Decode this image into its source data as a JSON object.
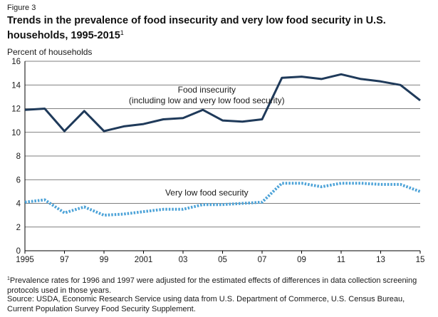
{
  "figure_label": "Figure 3",
  "title": "Trends in the prevalence of food insecurity and very low food security in U.S. households, 1995-2015",
  "title_sup": "1",
  "footnote_sup": "1",
  "footnote": "Prevalence rates for 1996 and 1997 were adjusted for the estimated effects of differences in data collection screening protocols used in those years.",
  "source": "Source: USDA, Economic Research Service using data from U.S. Department of Commerce, U.S. Census Bureau, Current Population Survey Food Security Supplement.",
  "colors": {
    "food_insecurity": "#1f3a5a",
    "very_low": "#4da3d8",
    "grid": "#555555",
    "axis": "#000000"
  },
  "chart_data": {
    "type": "line",
    "ylabel": "Percent of households",
    "ylim": [
      0,
      16
    ],
    "xlim": [
      1995,
      2015
    ],
    "yticks": [
      0,
      2,
      4,
      6,
      8,
      10,
      12,
      14,
      16
    ],
    "xticks": [
      {
        "value": 1995,
        "label": "1995"
      },
      {
        "value": 1997,
        "label": "97"
      },
      {
        "value": 1999,
        "label": "99"
      },
      {
        "value": 2001,
        "label": "2001"
      },
      {
        "value": 2003,
        "label": "03"
      },
      {
        "value": 2005,
        "label": "05"
      },
      {
        "value": 2007,
        "label": "07"
      },
      {
        "value": 2009,
        "label": "09"
      },
      {
        "value": 2011,
        "label": "11"
      },
      {
        "value": 2013,
        "label": "13"
      },
      {
        "value": 2015,
        "label": "15"
      }
    ],
    "grid": true,
    "series": [
      {
        "name": "Food insecurity (including low and very low food security)",
        "label_lines": [
          "Food insecurity",
          "(including low and very low food security)"
        ],
        "style": "solid",
        "x": [
          1995,
          1996,
          1997,
          1998,
          1999,
          2000,
          2001,
          2002,
          2003,
          2004,
          2005,
          2006,
          2007,
          2008,
          2009,
          2010,
          2011,
          2012,
          2013,
          2014,
          2015
        ],
        "values": [
          11.9,
          12.0,
          10.1,
          11.8,
          10.1,
          10.5,
          10.7,
          11.1,
          11.2,
          11.9,
          11.0,
          10.9,
          11.1,
          14.6,
          14.7,
          14.5,
          14.9,
          14.5,
          14.3,
          14.0,
          12.7
        ]
      },
      {
        "name": "Very low food security",
        "label_lines": [
          "Very low food security"
        ],
        "style": "dotted",
        "x": [
          1995,
          1996,
          1997,
          1998,
          1999,
          2000,
          2001,
          2002,
          2003,
          2004,
          2005,
          2006,
          2007,
          2008,
          2009,
          2010,
          2011,
          2012,
          2013,
          2014,
          2015
        ],
        "values": [
          4.1,
          4.3,
          3.2,
          3.7,
          3.0,
          3.1,
          3.3,
          3.5,
          3.5,
          3.9,
          3.9,
          4.0,
          4.1,
          5.7,
          5.7,
          5.4,
          5.7,
          5.7,
          5.6,
          5.6,
          5.0
        ]
      }
    ]
  }
}
